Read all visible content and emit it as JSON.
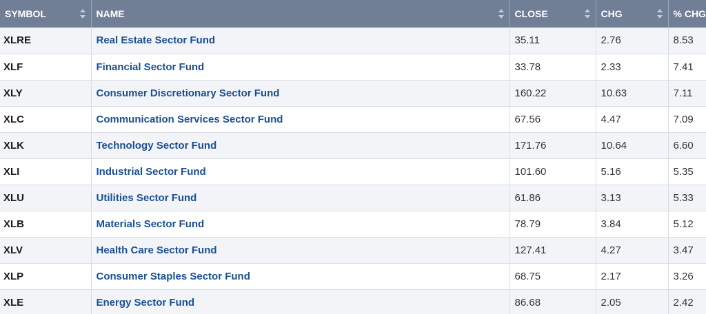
{
  "table": {
    "headers": {
      "symbol": "SYMBOL",
      "name": "NAME",
      "close": "CLOSE",
      "chg": "CHG",
      "pct_chg": "% CHG"
    },
    "rows": [
      {
        "symbol": "XLRE",
        "name": "Real Estate Sector Fund",
        "close": "35.11",
        "chg": "2.76",
        "pct_chg": "8.53"
      },
      {
        "symbol": "XLF",
        "name": "Financial Sector Fund",
        "close": "33.78",
        "chg": "2.33",
        "pct_chg": "7.41"
      },
      {
        "symbol": "XLY",
        "name": "Consumer Discretionary Sector Fund",
        "close": "160.22",
        "chg": "10.63",
        "pct_chg": "7.11"
      },
      {
        "symbol": "XLC",
        "name": "Communication Services Sector Fund",
        "close": "67.56",
        "chg": "4.47",
        "pct_chg": "7.09"
      },
      {
        "symbol": "XLK",
        "name": "Technology Sector Fund",
        "close": "171.76",
        "chg": "10.64",
        "pct_chg": "6.60"
      },
      {
        "symbol": "XLI",
        "name": "Industrial Sector Fund",
        "close": "101.60",
        "chg": "5.16",
        "pct_chg": "5.35"
      },
      {
        "symbol": "XLU",
        "name": "Utilities Sector Fund",
        "close": "61.86",
        "chg": "3.13",
        "pct_chg": "5.33"
      },
      {
        "symbol": "XLB",
        "name": "Materials Sector Fund",
        "close": "78.79",
        "chg": "3.84",
        "pct_chg": "5.12"
      },
      {
        "symbol": "XLV",
        "name": "Health Care Sector Fund",
        "close": "127.41",
        "chg": "4.27",
        "pct_chg": "3.47"
      },
      {
        "symbol": "XLP",
        "name": "Consumer Staples Sector Fund",
        "close": "68.75",
        "chg": "2.17",
        "pct_chg": "3.26"
      },
      {
        "symbol": "XLE",
        "name": "Energy Sector Fund",
        "close": "86.68",
        "chg": "2.05",
        "pct_chg": "2.42"
      }
    ]
  },
  "colors": {
    "header_bg": "#707f96",
    "link": "#1a4f94",
    "row_alt": "#f2f4f7"
  },
  "icons": {
    "sort": "sort-arrows-icon"
  }
}
